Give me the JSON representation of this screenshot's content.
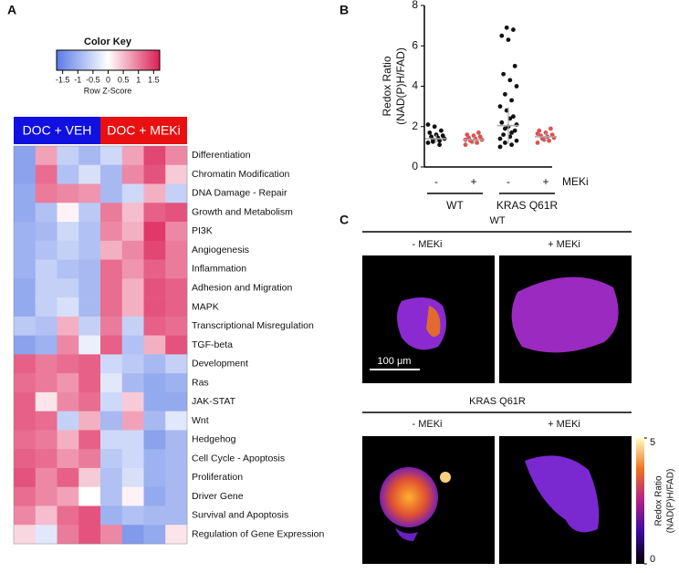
{
  "chart_data": [
    {
      "type": "heatmap",
      "panel": "A",
      "color_key": {
        "title": "Color Key",
        "xlabel": "Row Z-Score",
        "xlim": [
          -1.7,
          1.7
        ],
        "xticks": [
          -1.5,
          -1,
          -0.5,
          0,
          0.5,
          1,
          1.5
        ]
      },
      "low_color": "#5a7be6",
      "mid_color": "#ffffff",
      "high_color": "#dc1e55",
      "groups": [
        {
          "name": "DOC + VEH",
          "color": "#1010e0"
        },
        {
          "name": "DOC + MEKi",
          "color": "#e81010"
        }
      ],
      "rows": [
        "Differentiation",
        "Chromatin Modification",
        "DNA Damage - Repair",
        "Growth and Metabolism",
        "PI3K",
        "Angiogenesis",
        "Inflammation",
        "Adhesion and Migration",
        "MAPK",
        "Transcriptional Misregulation",
        "TGF-beta",
        "Development",
        "Ras",
        "JAK-STAT",
        "Wnt",
        "Hedgehog",
        "Cell Cycle - Apoptosis",
        "Proliferation",
        "Driver Gene",
        "Survival and Apoptosis",
        "Regulation of Gene Expression"
      ],
      "values": [
        [
          -1.2,
          0.7,
          -0.6,
          -0.9,
          -0.5,
          0.7,
          1.4,
          0.9
        ],
        [
          -1.2,
          1.1,
          -0.8,
          -0.4,
          -0.9,
          0.9,
          1.3,
          0.4
        ],
        [
          -1.1,
          1.0,
          0.9,
          0.8,
          -0.9,
          -0.5,
          0.6,
          -0.6
        ],
        [
          -1.1,
          -0.8,
          0.1,
          -0.7,
          1.0,
          0.5,
          1.2,
          1.3
        ],
        [
          -1.0,
          -0.9,
          -0.5,
          -0.8,
          0.9,
          0.6,
          1.5,
          0.9
        ],
        [
          -1.0,
          -0.8,
          -0.6,
          -0.8,
          0.6,
          0.9,
          1.4,
          1.0
        ],
        [
          -1.0,
          -0.6,
          -0.8,
          -0.9,
          1.1,
          0.8,
          1.2,
          1.0
        ],
        [
          -1.1,
          -0.6,
          -0.6,
          -0.9,
          1.1,
          0.6,
          1.3,
          1.2
        ],
        [
          -1.1,
          -0.6,
          -0.4,
          -0.9,
          1.1,
          0.6,
          1.3,
          1.2
        ],
        [
          -0.7,
          -0.8,
          0.6,
          -0.6,
          1.0,
          -0.6,
          1.2,
          1.1
        ],
        [
          -1.2,
          -1.0,
          0.9,
          -0.2,
          1.2,
          -0.8,
          0.6,
          1.3
        ],
        [
          1.2,
          1.0,
          1.1,
          1.2,
          -0.5,
          -0.7,
          -0.9,
          -0.6
        ],
        [
          1.1,
          1.0,
          0.8,
          1.2,
          -0.3,
          -0.9,
          -1.1,
          -1.0
        ],
        [
          1.2,
          0.2,
          0.9,
          1.1,
          -0.5,
          0.4,
          -1.1,
          -1.1
        ],
        [
          1.2,
          1.1,
          -0.6,
          0.6,
          -0.9,
          0.7,
          -0.9,
          -0.3
        ],
        [
          1.1,
          1.0,
          0.6,
          1.2,
          -0.5,
          -0.5,
          -1.2,
          -0.9
        ],
        [
          1.2,
          1.1,
          0.8,
          1.0,
          -0.7,
          -0.5,
          -1.0,
          -0.9
        ],
        [
          1.3,
          0.9,
          1.2,
          0.4,
          -0.8,
          -0.4,
          -1.0,
          -0.9
        ],
        [
          1.1,
          0.9,
          0.7,
          0.0,
          -0.8,
          0.1,
          -1.1,
          -0.9
        ],
        [
          0.9,
          0.5,
          1.1,
          1.3,
          -1.0,
          -0.8,
          -0.9,
          -0.9
        ],
        [
          0.3,
          -0.3,
          1.0,
          1.3,
          0.9,
          -1.3,
          -1.1,
          0.2
        ]
      ]
    },
    {
      "type": "dot",
      "panel": "B",
      "ylabel": [
        "Redox Ratio",
        "(NAD(P)H/FAD)"
      ],
      "ylim": [
        0,
        8
      ],
      "yticks": [
        0,
        2,
        4,
        6,
        8
      ],
      "categories": [
        "-",
        "+",
        "-",
        "+"
      ],
      "row_label": "MEKi",
      "groups": [
        "WT",
        "KRAS Q61R"
      ],
      "colors": [
        "#111111",
        "#e05050",
        "#111111",
        "#e05050"
      ],
      "means": [
        1.4,
        1.35,
        2.05,
        1.5
      ],
      "sds": [
        0.2,
        0.15,
        0.9,
        0.2
      ],
      "points": [
        [
          1.2,
          1.3,
          1.35,
          1.4,
          1.45,
          1.5,
          1.55,
          1.6,
          1.7,
          1.8,
          2.0,
          2.1,
          1.1,
          1.25
        ],
        [
          1.1,
          1.2,
          1.3,
          1.35,
          1.4,
          1.45,
          1.5,
          1.55,
          1.6,
          1.7,
          1.25,
          1.35
        ],
        [
          1.0,
          1.1,
          1.2,
          1.3,
          1.5,
          1.6,
          1.8,
          2.0,
          2.2,
          2.5,
          2.8,
          3.0,
          3.3,
          3.6,
          4.0,
          4.3,
          4.6,
          5.0,
          6.3,
          6.5,
          6.8,
          6.9,
          1.4,
          1.7,
          1.9,
          2.1,
          2.4
        ],
        [
          1.2,
          1.3,
          1.4,
          1.45,
          1.5,
          1.55,
          1.6,
          1.7,
          1.8,
          1.9,
          1.35,
          1.65
        ]
      ]
    },
    {
      "type": "image-grid",
      "panel": "C",
      "titles": [
        "WT",
        "KRAS Q61R"
      ],
      "columns": [
        "- MEKi",
        "+ MEKi"
      ],
      "scale_bar": "100 μm",
      "colorbar": {
        "label": [
          "Redox Ratio",
          "(NAD(P)H/FAD)"
        ],
        "ylim": [
          0,
          5
        ],
        "yticks": [
          0,
          5
        ]
      }
    }
  ]
}
